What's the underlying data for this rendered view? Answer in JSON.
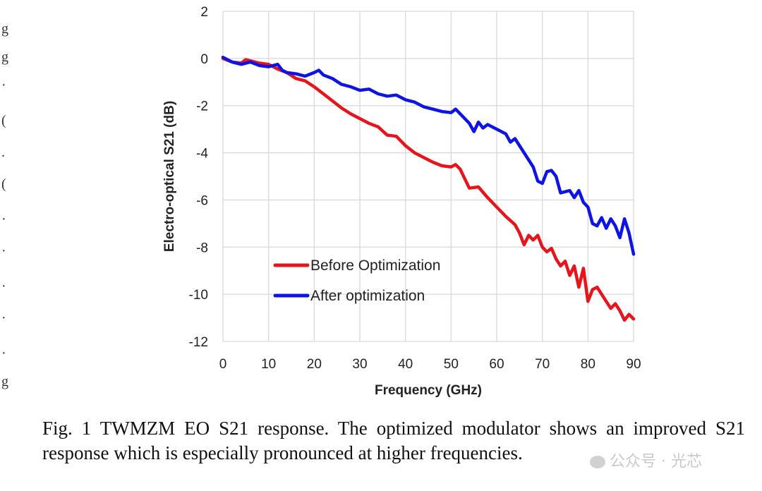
{
  "chart_data": {
    "type": "line",
    "xlabel": "Frequency (GHz)",
    "ylabel": "Electro-optical S21 (dB)",
    "xlim": [
      0,
      90
    ],
    "ylim": [
      -12,
      2
    ],
    "xticks": [
      "0",
      "10",
      "20",
      "30",
      "40",
      "50",
      "60",
      "70",
      "80",
      "90"
    ],
    "yticks": [
      "2",
      "0",
      "-2",
      "-4",
      "-6",
      "-8",
      "-10",
      "-12"
    ],
    "grid": true,
    "legend_position": "lower-left",
    "series": [
      {
        "name": "Before Optimization",
        "color": "#e8141b",
        "x": [
          0,
          2,
          4,
          5,
          6,
          8,
          10,
          12,
          14,
          16,
          18,
          20,
          22,
          24,
          26,
          28,
          30,
          32,
          34,
          36,
          38,
          40,
          42,
          44,
          46,
          48,
          50,
          51,
          52,
          53,
          54,
          56,
          58,
          60,
          62,
          64,
          65,
          66,
          67,
          68,
          69,
          70,
          71,
          72,
          73,
          74,
          75,
          76,
          77,
          78,
          79,
          80,
          81,
          82,
          84,
          85,
          86,
          87,
          88,
          89,
          90
        ],
        "y": [
          0.0,
          -0.15,
          -0.2,
          -0.05,
          -0.1,
          -0.2,
          -0.25,
          -0.45,
          -0.6,
          -0.85,
          -0.95,
          -1.2,
          -1.5,
          -1.8,
          -2.1,
          -2.35,
          -2.55,
          -2.75,
          -2.9,
          -3.25,
          -3.3,
          -3.7,
          -4.0,
          -4.2,
          -4.4,
          -4.55,
          -4.6,
          -4.5,
          -4.7,
          -5.1,
          -5.5,
          -5.45,
          -5.9,
          -6.3,
          -6.7,
          -7.05,
          -7.4,
          -7.9,
          -7.5,
          -7.7,
          -7.5,
          -8.0,
          -8.2,
          -8.05,
          -8.5,
          -8.8,
          -8.6,
          -9.2,
          -8.8,
          -9.7,
          -8.9,
          -10.3,
          -9.8,
          -9.7,
          -10.3,
          -10.6,
          -10.4,
          -10.7,
          -11.1,
          -10.85,
          -11.05
        ]
      },
      {
        "name": "After optimization",
        "color": "#0f14e6",
        "x": [
          0,
          2,
          4,
          6,
          8,
          10,
          12,
          13,
          14,
          16,
          18,
          20,
          21,
          22,
          24,
          26,
          28,
          30,
          32,
          34,
          36,
          38,
          40,
          42,
          44,
          46,
          48,
          50,
          51,
          52,
          54,
          55,
          56,
          57,
          58,
          60,
          62,
          63,
          64,
          66,
          68,
          69,
          70,
          71,
          72,
          73,
          74,
          76,
          77,
          78,
          79,
          80,
          81,
          82,
          83,
          84,
          85,
          86,
          87,
          88,
          89,
          90
        ],
        "y": [
          0.05,
          -0.15,
          -0.25,
          -0.15,
          -0.3,
          -0.35,
          -0.25,
          -0.5,
          -0.6,
          -0.65,
          -0.75,
          -0.6,
          -0.5,
          -0.7,
          -0.85,
          -1.1,
          -1.2,
          -1.35,
          -1.3,
          -1.5,
          -1.6,
          -1.55,
          -1.75,
          -1.85,
          -2.05,
          -2.15,
          -2.25,
          -2.3,
          -2.15,
          -2.35,
          -2.75,
          -3.1,
          -2.7,
          -2.95,
          -2.8,
          -3.0,
          -3.2,
          -3.55,
          -3.4,
          -4.0,
          -4.6,
          -5.2,
          -5.3,
          -4.8,
          -4.75,
          -5.0,
          -5.7,
          -5.6,
          -5.9,
          -5.6,
          -6.1,
          -6.3,
          -7.0,
          -7.1,
          -6.75,
          -7.2,
          -6.8,
          -7.1,
          -7.6,
          -6.8,
          -7.4,
          -8.3
        ]
      }
    ]
  },
  "caption": {
    "line1": "Fig. 1 TWMZM EO S21 response. The optimized modulator shows an",
    "line2": "improved S21 response which is especially pronounced at higher frequencies."
  },
  "watermark": {
    "text": "公众号 · 光芯"
  },
  "left_edge_fragments": [
    "g",
    "g",
    "·",
    "(",
    ".",
    "(",
    "·",
    "·",
    "·",
    "·",
    "·",
    "g"
  ]
}
